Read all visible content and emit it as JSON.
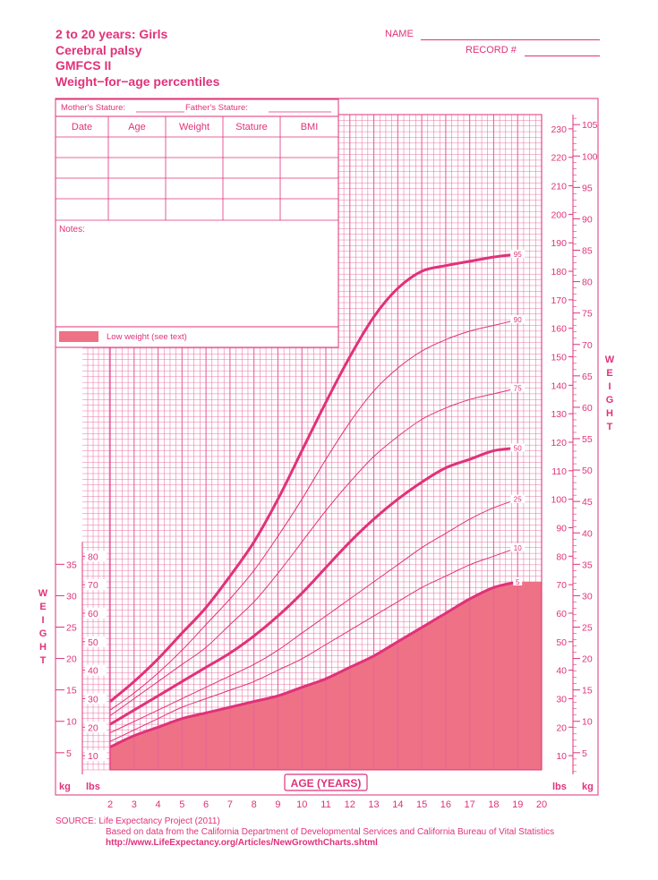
{
  "header": {
    "title_lines": [
      "2 to 20 years: Girls",
      "Cerebral palsy",
      "GMFCS II",
      "Weight−for−age percentiles"
    ],
    "name_label": "NAME",
    "record_label": "RECORD #"
  },
  "form": {
    "mothers_stature": "Mother's Stature:",
    "fathers_stature": "Father's Stature:",
    "columns": [
      "Date",
      "Age",
      "Weight",
      "Stature",
      "BMI"
    ],
    "notes_label": "Notes:",
    "legend_label": "Low weight (see text)"
  },
  "colors": {
    "primary": "#e0327a",
    "grid": "#e8659a",
    "fill": "#ee7186"
  },
  "chart_data": {
    "type": "line",
    "xlabel": "AGE (YEARS)",
    "x_ticks": [
      2,
      3,
      4,
      5,
      6,
      7,
      8,
      9,
      10,
      11,
      12,
      13,
      14,
      15,
      16,
      17,
      18,
      19,
      20
    ],
    "xlim": [
      2,
      20
    ],
    "ylim_lbs": [
      5,
      235
    ],
    "ylabel_left": "WEIGHT",
    "ylabel_right": "WEIGHT",
    "unit_kg": "kg",
    "unit_lbs": "lbs",
    "y_ticks_lbs_left": [
      10,
      20,
      30,
      40,
      50,
      60,
      70,
      80
    ],
    "y_ticks_kg_left": [
      5,
      10,
      15,
      20,
      25,
      30,
      35
    ],
    "y_ticks_lbs_right": [
      10,
      20,
      30,
      40,
      50,
      60,
      70,
      80,
      90,
      100,
      110,
      120,
      130,
      140,
      150,
      160,
      170,
      180,
      190,
      200,
      210,
      220,
      230
    ],
    "y_ticks_kg_right": [
      5,
      10,
      15,
      20,
      25,
      30,
      35,
      40,
      45,
      50,
      55,
      60,
      65,
      70,
      75,
      80,
      85,
      90,
      95,
      100,
      105
    ],
    "low_weight_region": "below 5th percentile",
    "series": [
      {
        "name": "95",
        "x": [
          2,
          3,
          4,
          5,
          6,
          7,
          8,
          9,
          10,
          11,
          12,
          13,
          14,
          15,
          16,
          17,
          18,
          19
        ],
        "values": [
          29,
          36,
          44,
          53,
          62,
          73,
          85,
          100,
          117,
          134,
          150,
          164,
          174,
          180,
          182,
          183.5,
          185,
          186
        ]
      },
      {
        "name": "90",
        "x": [
          2,
          3,
          4,
          5,
          6,
          7,
          8,
          9,
          10,
          11,
          12,
          13,
          14,
          15,
          16,
          17,
          18,
          19
        ],
        "values": [
          26,
          32,
          39,
          47,
          56,
          65,
          75,
          87,
          100,
          114,
          127,
          138,
          146,
          152,
          156,
          159,
          161,
          163
        ]
      },
      {
        "name": "75",
        "x": [
          2,
          3,
          4,
          5,
          6,
          7,
          8,
          9,
          10,
          11,
          12,
          13,
          14,
          15,
          16,
          17,
          18,
          19
        ],
        "values": [
          24,
          30,
          36,
          42,
          48,
          56,
          64,
          74,
          85,
          96,
          106,
          115,
          122,
          128,
          132,
          135,
          137,
          139
        ]
      },
      {
        "name": "50",
        "x": [
          2,
          3,
          4,
          5,
          6,
          7,
          8,
          9,
          10,
          11,
          12,
          13,
          14,
          15,
          16,
          17,
          18,
          19
        ],
        "values": [
          21,
          26,
          31,
          36,
          41,
          46,
          52,
          59,
          67,
          76,
          85,
          93,
          100,
          106,
          111,
          114,
          117,
          118
        ]
      },
      {
        "name": "25",
        "x": [
          2,
          3,
          4,
          5,
          6,
          7,
          8,
          9,
          10,
          11,
          12,
          13,
          14,
          15,
          16,
          17,
          18,
          19
        ],
        "values": [
          18,
          22,
          26,
          30,
          34,
          38,
          42,
          47,
          53,
          59,
          65,
          71,
          77,
          83,
          88,
          93,
          97,
          100
        ]
      },
      {
        "name": "10",
        "x": [
          2,
          3,
          4,
          5,
          6,
          7,
          8,
          9,
          10,
          11,
          12,
          13,
          14,
          15,
          16,
          17,
          18,
          19
        ],
        "values": [
          15,
          19,
          23,
          27,
          30,
          33,
          36,
          40,
          44,
          49,
          54,
          59,
          64,
          69,
          73,
          77,
          80,
          83
        ]
      },
      {
        "name": "5",
        "x": [
          2,
          3,
          4,
          5,
          6,
          7,
          8,
          9,
          10,
          11,
          12,
          13,
          14,
          15,
          16,
          17,
          18,
          19
        ],
        "values": [
          13,
          17,
          20,
          23,
          25,
          27,
          29,
          31,
          34,
          37,
          41,
          45,
          50,
          55,
          60,
          65,
          69,
          71
        ]
      }
    ]
  },
  "source": {
    "label": "SOURCE:",
    "line1": "Life Expectancy Project (2011)",
    "line2": "Based on data from the California Department of Developmental Services and California Bureau of Vital Statistics",
    "line3": "http://www.LifeExpectancy.org/Articles/NewGrowthCharts.shtml"
  }
}
